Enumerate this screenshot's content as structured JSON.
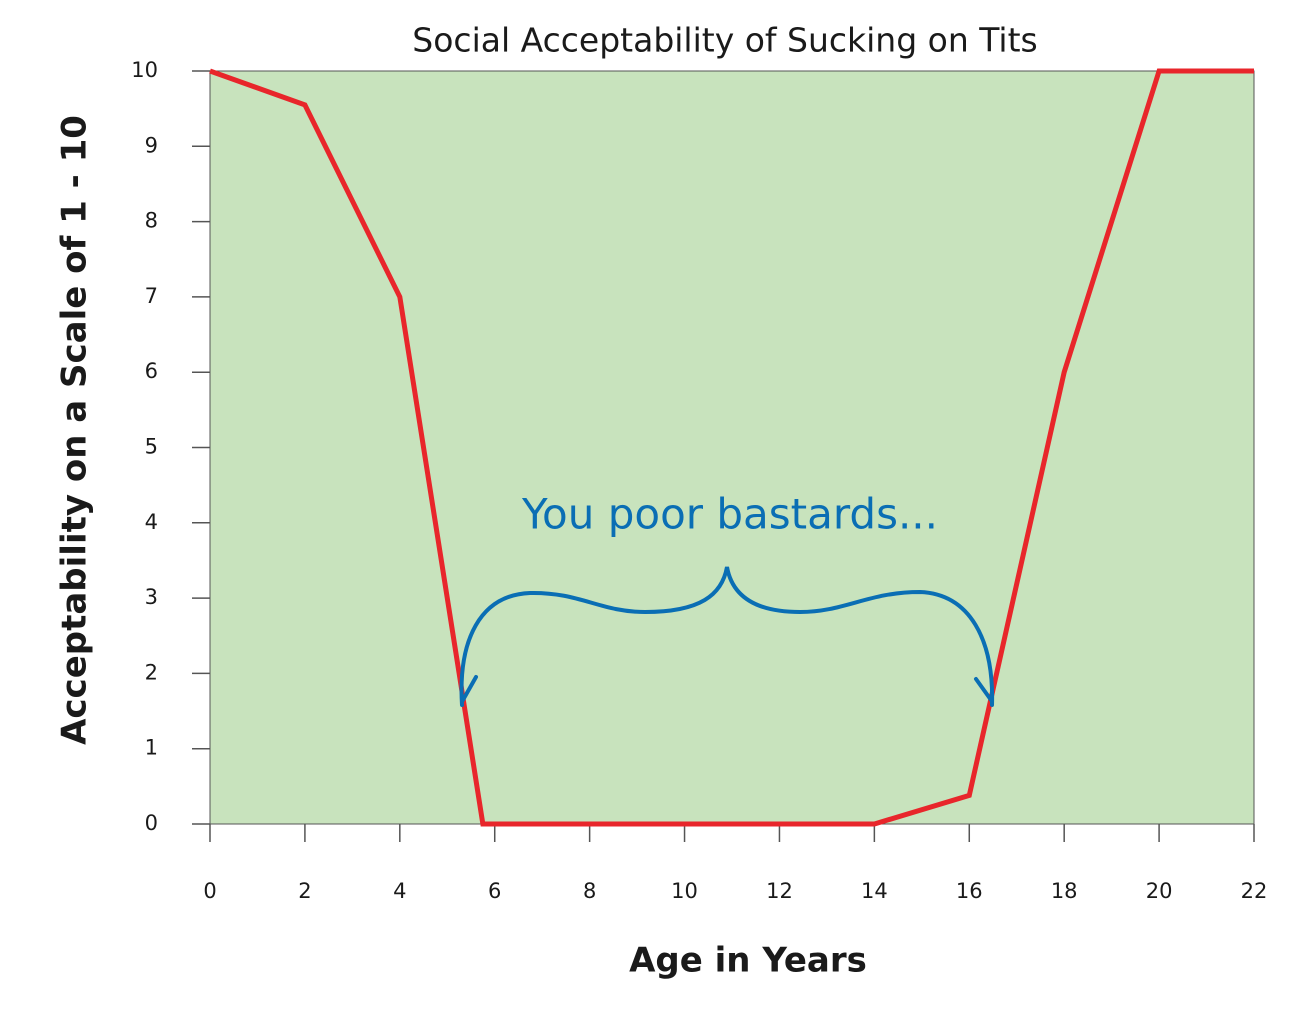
{
  "chart_data": {
    "type": "line",
    "title": "Social Acceptability of Sucking on Tits",
    "x_label": "Age in Years",
    "y_label": "Acceptability on a Scale of 1 - 10",
    "annotation": "You poor bastards...",
    "x": [
      0,
      2,
      4,
      5.75,
      14,
      16,
      18,
      20,
      22
    ],
    "series": [
      {
        "name": "Acceptability",
        "color": "#e8262b",
        "values": [
          10,
          9.55,
          7,
          0,
          0,
          0.38,
          6,
          10,
          10
        ]
      }
    ],
    "xlim": [
      0,
      22
    ],
    "xticks": [
      0,
      2,
      4,
      6,
      8,
      10,
      12,
      14,
      16,
      18,
      20,
      22
    ],
    "ylim": [
      0,
      10
    ],
    "yticks": [
      0,
      1,
      2,
      3,
      4,
      5,
      6,
      7,
      8,
      9,
      10
    ],
    "background": "#c8e3bd",
    "annotation_color": "#0a6eb4",
    "grid": false
  }
}
